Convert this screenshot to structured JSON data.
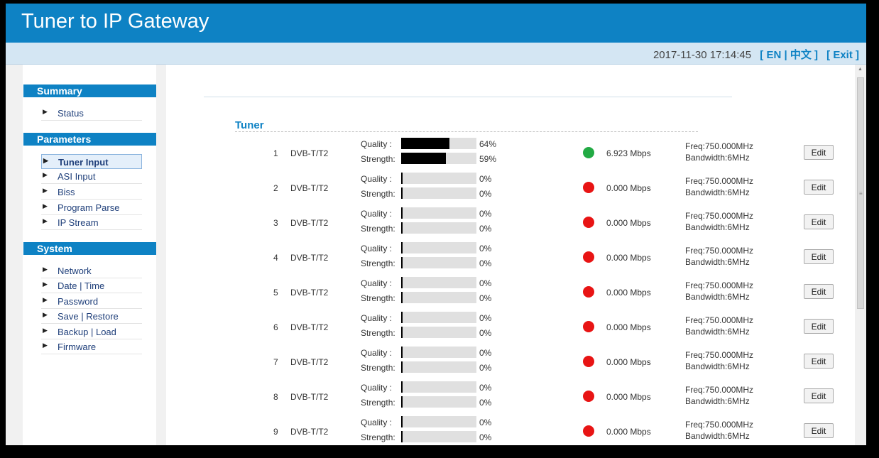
{
  "app": {
    "title": "Tuner to IP Gateway"
  },
  "topbar": {
    "datetime": "2017-11-30 17:14:45",
    "lang_link": "[ EN | 中文 ]",
    "exit_link": "[ Exit ]"
  },
  "sidebar": {
    "sections": [
      {
        "title": "Summary",
        "items": [
          {
            "label": "Status"
          }
        ]
      },
      {
        "title": "Parameters",
        "items": [
          {
            "label": "Tuner Input",
            "active": true
          },
          {
            "label": "ASI Input"
          },
          {
            "label": "Biss"
          },
          {
            "label": "Program Parse"
          },
          {
            "label": "IP Stream"
          }
        ]
      },
      {
        "title": "System",
        "items": [
          {
            "label": "Network"
          },
          {
            "label": "Date | Time"
          },
          {
            "label": "Password"
          },
          {
            "label": "Save | Restore"
          },
          {
            "label": "Backup | Load"
          },
          {
            "label": "Firmware"
          }
        ]
      }
    ]
  },
  "main": {
    "section_title": "Tuner",
    "quality_label": "Quality :",
    "strength_label": "Strength:",
    "edit_label": "Edit",
    "status_colors": {
      "ok": "#22aa44",
      "error": "#e81414"
    },
    "tuners": [
      {
        "index": "1",
        "type": "DVB-T/T2",
        "quality": 64,
        "quality_text": "64%",
        "strength": 59,
        "strength_text": "59%",
        "status": "ok",
        "bitrate": "6.923 Mbps",
        "freq": "Freq:750.000MHz",
        "bandwidth": "Bandwidth:6MHz"
      },
      {
        "index": "2",
        "type": "DVB-T/T2",
        "quality": 0,
        "quality_text": "0%",
        "strength": 0,
        "strength_text": "0%",
        "status": "error",
        "bitrate": "0.000 Mbps",
        "freq": "Freq:750.000MHz",
        "bandwidth": "Bandwidth:6MHz"
      },
      {
        "index": "3",
        "type": "DVB-T/T2",
        "quality": 0,
        "quality_text": "0%",
        "strength": 0,
        "strength_text": "0%",
        "status": "error",
        "bitrate": "0.000 Mbps",
        "freq": "Freq:750.000MHz",
        "bandwidth": "Bandwidth:6MHz"
      },
      {
        "index": "4",
        "type": "DVB-T/T2",
        "quality": 0,
        "quality_text": "0%",
        "strength": 0,
        "strength_text": "0%",
        "status": "error",
        "bitrate": "0.000 Mbps",
        "freq": "Freq:750.000MHz",
        "bandwidth": "Bandwidth:6MHz"
      },
      {
        "index": "5",
        "type": "DVB-T/T2",
        "quality": 0,
        "quality_text": "0%",
        "strength": 0,
        "strength_text": "0%",
        "status": "error",
        "bitrate": "0.000 Mbps",
        "freq": "Freq:750.000MHz",
        "bandwidth": "Bandwidth:6MHz"
      },
      {
        "index": "6",
        "type": "DVB-T/T2",
        "quality": 0,
        "quality_text": "0%",
        "strength": 0,
        "strength_text": "0%",
        "status": "error",
        "bitrate": "0.000 Mbps",
        "freq": "Freq:750.000MHz",
        "bandwidth": "Bandwidth:6MHz"
      },
      {
        "index": "7",
        "type": "DVB-T/T2",
        "quality": 0,
        "quality_text": "0%",
        "strength": 0,
        "strength_text": "0%",
        "status": "error",
        "bitrate": "0.000 Mbps",
        "freq": "Freq:750.000MHz",
        "bandwidth": "Bandwidth:6MHz"
      },
      {
        "index": "8",
        "type": "DVB-T/T2",
        "quality": 0,
        "quality_text": "0%",
        "strength": 0,
        "strength_text": "0%",
        "status": "error",
        "bitrate": "0.000 Mbps",
        "freq": "Freq:750.000MHz",
        "bandwidth": "Bandwidth:6MHz"
      },
      {
        "index": "9",
        "type": "DVB-T/T2",
        "quality": 0,
        "quality_text": "0%",
        "strength": 0,
        "strength_text": "0%",
        "status": "error",
        "bitrate": "0.000 Mbps",
        "freq": "Freq:750.000MHz",
        "bandwidth": "Bandwidth:6MHz"
      }
    ]
  }
}
